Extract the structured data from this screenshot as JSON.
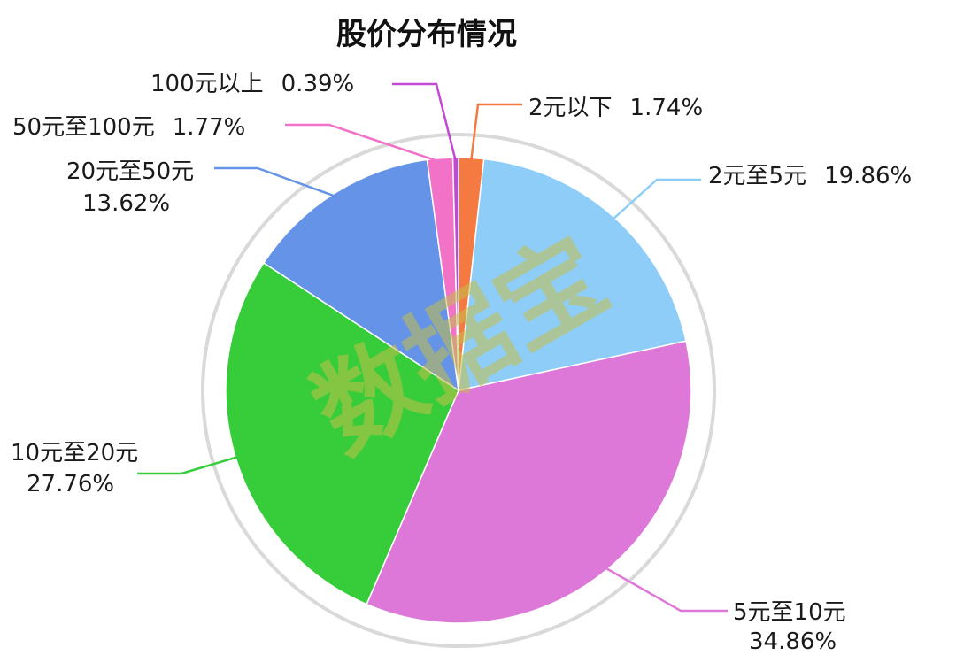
{
  "chart_data": {
    "type": "pie",
    "title": "股价分布情况",
    "watermark": "数据宝",
    "slices": [
      {
        "name": "2元以下",
        "value": 1.74,
        "label": "1.74%",
        "color": "#f47a42"
      },
      {
        "name": "2元至5元",
        "value": 19.86,
        "label": "19.86%",
        "color": "#8ecdf8"
      },
      {
        "name": "5元至10元",
        "value": 34.86,
        "label": "34.86%",
        "color": "#de78d8"
      },
      {
        "name": "10元至20元",
        "value": 27.76,
        "label": "27.76%",
        "color": "#37cc3a"
      },
      {
        "name": "20元至50元",
        "value": 13.62,
        "label": "13.62%",
        "color": "#6493e8"
      },
      {
        "name": "50元至100元",
        "value": 1.77,
        "label": "1.77%",
        "color": "#f272c8"
      },
      {
        "name": "100元以上",
        "value": 0.39,
        "label": "0.39%",
        "color": "#c24ad2"
      }
    ]
  }
}
